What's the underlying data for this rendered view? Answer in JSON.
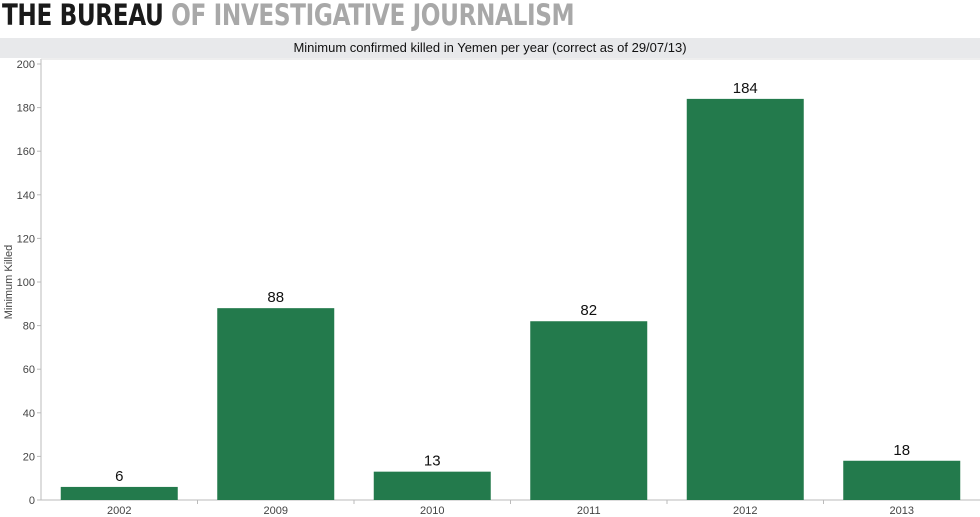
{
  "header": {
    "logo_bold": "THE BUREAU",
    "logo_light": "OF INVESTIGATIVE JOURNALISM"
  },
  "chart_data": {
    "type": "bar",
    "title": "Minimum confirmed killed in Yemen per year (correct as of 29/07/13)",
    "xlabel": "",
    "ylabel": "Minimum Killed",
    "categories": [
      "2002",
      "2009",
      "2010",
      "2011",
      "2012",
      "2013"
    ],
    "values": [
      6,
      88,
      13,
      82,
      184,
      18
    ],
    "ylim": [
      0,
      200
    ],
    "yticks": [
      0,
      20,
      40,
      60,
      80,
      100,
      120,
      140,
      160,
      180,
      200
    ],
    "bar_color": "#237a4c",
    "grid": false
  }
}
